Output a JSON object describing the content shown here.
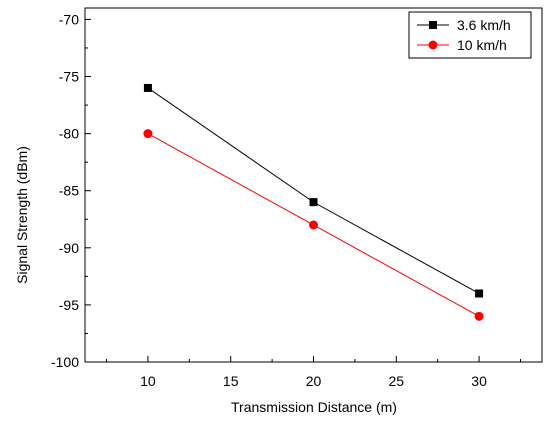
{
  "chart_data": {
    "type": "line",
    "title": "",
    "xlabel": "Transmission Distance (m)",
    "ylabel": "Signal Strength (dBm)",
    "xlim": [
      6.2,
      33.8
    ],
    "ylim": [
      -100,
      -69
    ],
    "xticks": [
      10,
      15,
      20,
      25,
      30
    ],
    "yticks": [
      -100,
      -95,
      -90,
      -85,
      -80,
      -75,
      -70
    ],
    "grid": false,
    "legend_position": "top-right",
    "series": [
      {
        "name": "3.6 km/h",
        "color": "#000000",
        "marker": "square",
        "x": [
          10,
          20,
          30
        ],
        "y": [
          -76,
          -86,
          -94
        ]
      },
      {
        "name": "10 km/h",
        "color": "#ff0000",
        "marker": "circle",
        "x": [
          10,
          20,
          30
        ],
        "y": [
          -80,
          -88,
          -96
        ]
      }
    ]
  }
}
